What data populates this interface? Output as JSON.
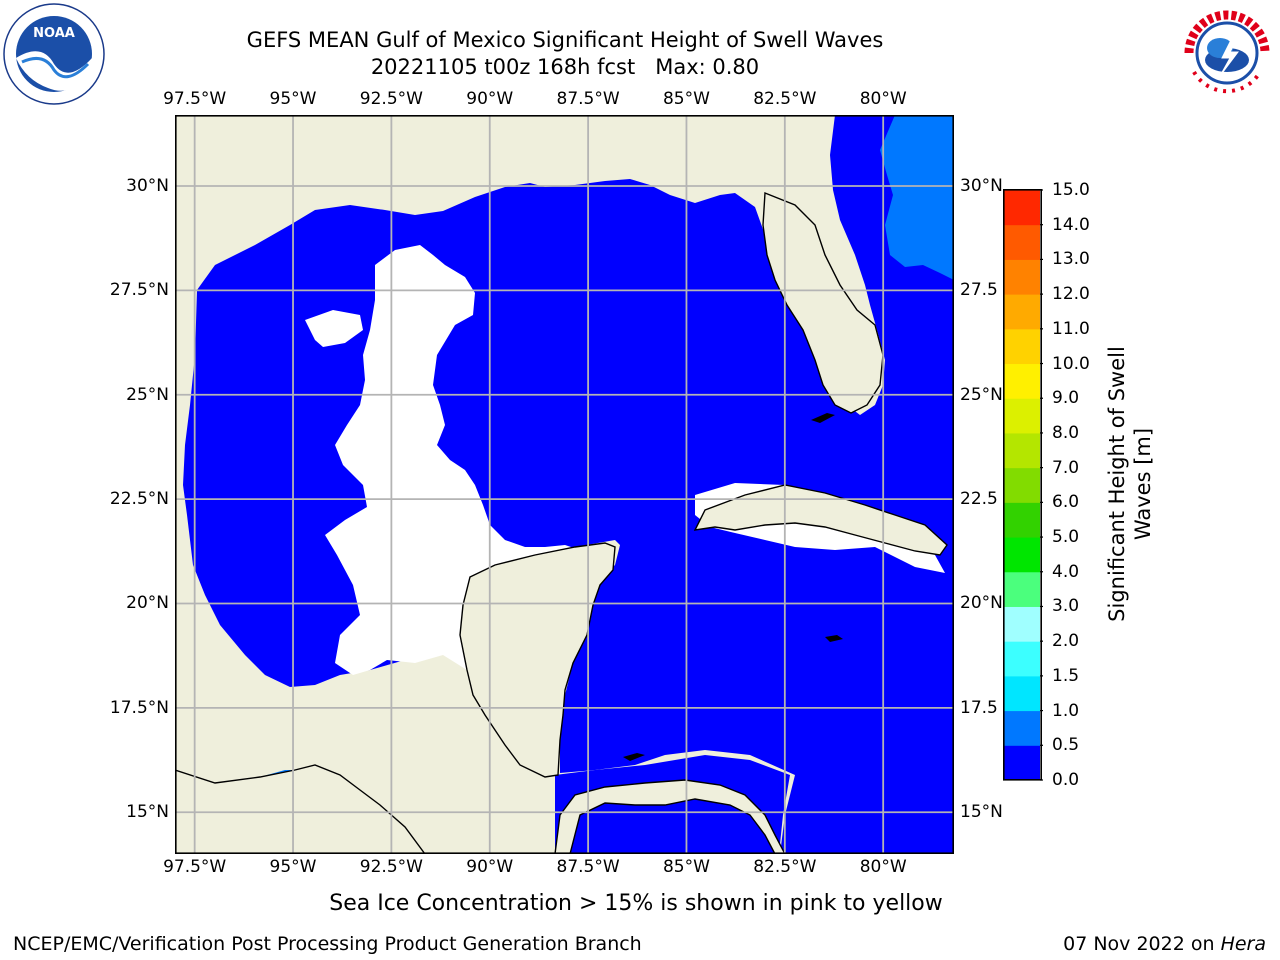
{
  "title_line1": "GEFS MEAN Gulf of Mexico Significant Height of Swell Waves",
  "title_line2": "20221105 t00z 168h fcst   Max: 0.80",
  "x_ticks": [
    "97.5°W",
    "95°W",
    "92.5°W",
    "90°W",
    "87.5°W",
    "85°W",
    "82.5°W",
    "80°W"
  ],
  "y_ticks": [
    "30°N",
    "27.5°N",
    "25°N",
    "22.5°N",
    "20°N",
    "17.5°N",
    "15°N"
  ],
  "y_ticks_right": [
    "30°N",
    "27.5",
    "25°N",
    "22.5",
    "20°N",
    "17.5",
    "15°N"
  ],
  "map_extent": {
    "lon_min": -98,
    "lon_max": -78.2,
    "lat_min": 14,
    "lat_max": 31.7
  },
  "colorbar": {
    "title_line1": "Significant Height of Swell",
    "title_line2": "Waves [m]",
    "labels": [
      "0.0",
      "0.5",
      "1.0",
      "1.5",
      "2.0",
      "3.0",
      "4.0",
      "5.0",
      "6.0",
      "7.0",
      "8.0",
      "9.0",
      "10.0",
      "11.0",
      "12.0",
      "13.0",
      "14.0",
      "15.0"
    ],
    "colors": [
      "#0000ff",
      "#0078ff",
      "#00e6ff",
      "#3cffff",
      "#a0ffff",
      "#4bff7d",
      "#00e600",
      "#32d200",
      "#82dc00",
      "#b4e600",
      "#dcf000",
      "#fff000",
      "#ffd200",
      "#ffaa00",
      "#ff8200",
      "#ff5a00",
      "#ff2800",
      "#ff0000"
    ]
  },
  "colors": {
    "land": "#efefdc",
    "ocean_swell_low": "#0000ff",
    "ocean_swell_mid": "#0078ff",
    "no_data": "#ffffff",
    "grid": "#b4b4b4"
  },
  "subtitle": "Sea Ice Concentration > 15% is shown in pink to yellow",
  "footer_left": "NCEP/EMC/Verification Post Processing Product Generation Branch",
  "footer_right_date": "07 Nov 2022 on ",
  "footer_right_host": "Hera",
  "logos": {
    "noaa_text": "NOAA",
    "nws_text": "NATIONAL WEATHER SERVICE"
  }
}
